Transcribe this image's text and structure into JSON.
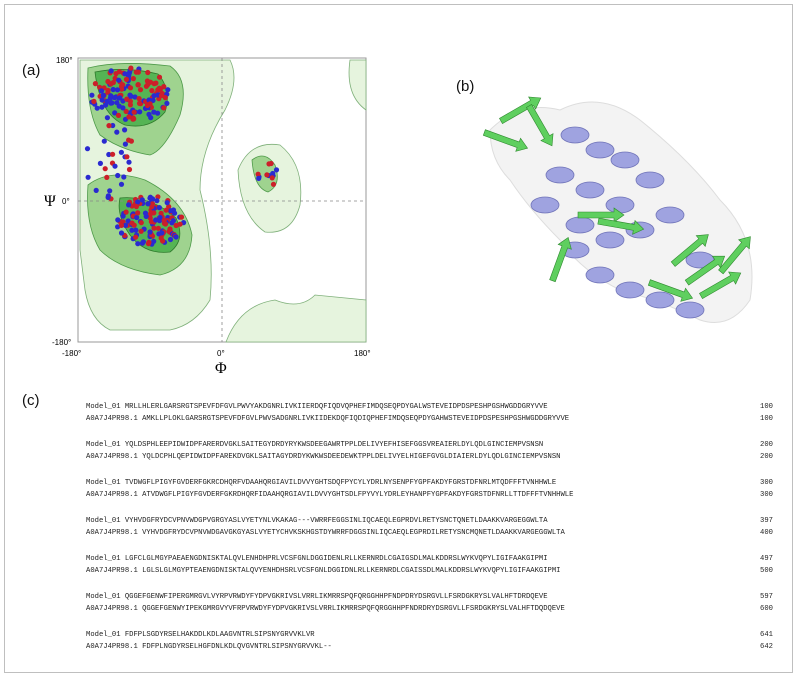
{
  "panels": {
    "a": "(a)",
    "b": "(b)",
    "c": "(c)"
  },
  "ramachandran": {
    "x_axis_label": "Φ",
    "y_axis_label": "Ψ",
    "x_ticks": [
      "-180°",
      "0°",
      "180°"
    ],
    "y_ticks": [
      "180°",
      "0°",
      "-180°"
    ]
  },
  "colors": {
    "favored": "#55b454",
    "allowed": "#9fd38f",
    "generous": "#e6f4de",
    "helix": "#9fa3e0",
    "strand": "#5fcf5f",
    "points_red": "#cc1f2a",
    "points_blue": "#2a2ad0"
  },
  "alignment": [
    {
      "line1": "Model_01 MRLLHLERLGARSRGTSPEVFDFGVLPWVYAKDGNRLIVKIIERDQFIQDVQPHEFIMDQSEQPDYGALWSTEVEIDPDSPESHPGSHWGDDGRYVVE",
      "n1": "100",
      "line2": "A0A7J4PR98.1 AMKLLPLOKLGARSRGTSPEVFDFGVLPWVSADGNRLIVKIIDEKDQFIQDIQPHEFIMDQSEQPDYGAHWSTEVEIDPDSPESHPGSHWGDDGRYVVE",
      "n2": "100"
    },
    {
      "line1": "Model_01 YQLDSPHLEEPIDWIDPFARERDVGKLSAITEGYDRDYRYKWSDEEGAWRTPPLDELIVYEFHISEFGGSVREAIERLDYLQDLGINCIEMPVSNSN",
      "n1": "200",
      "line2": "A0A7J4PR98.1 YQLDCPHLQEPIDWIDPFAREKDVGKLSAITAGYDRDYKWKWSDEEDEWKTPPLDELIVYELHIGEFGVGLDIAIERLDYLQDLGINCIEMPVSNSN",
      "n2": "200"
    },
    {
      "line1": "Model_01 TVDWGFLPIGYFGVDERFGKRCDHQRFVDAAHQRGIAVILDVVYGHTSDQFPYCYLYDRLNYSENPFYGPFAKDYFGRSTDFNRLMTQDFFFTVNHHWLE",
      "n1": "300",
      "line2": "A0A7J4PR98.1 ATVDWGFLPIGYFGVDERFGKRDHQRFIDAAHQRGIAVILDVVYGHTSDLFPYVYLYDRLEYHANPFYGPFAKDYFGRSTDFNRLLTTDFFFTVNHHWLE",
      "n2": "300"
    },
    {
      "line1": "Model_01 VYHVDGFRYDCVPNVWDGPVGRGYASLVYETYNLVKAKAG---VWRRFEGGSINLIQCAEQLEGPRDVLRETYSNCTQNETLDAAKKVARGEGGWLTA",
      "n1": "397",
      "line2": "A0A7J4PR98.1 VYHVDGFRYDCVPNVWDGAVGKGYASLVYETYCHVKSKHGSTDYWRRFDGGSINLIQCAEQLEGPRDILRETYSNCMQNETLDAAKKVARGEGGWLTA",
      "n2": "400"
    },
    {
      "line1": "Model_01 LGFCLGLMGYPAEAENGDNISKTALQVLENHDHPRLVCSFGNLDGGIDENLRLLKERNRDLCGAIGSDLMALKDDRSLWYKVQPYLIGIFAAKGIPMI",
      "n1": "497",
      "line2": "A0A7J4PR98.1 LGLSLGLMGYPTEAENGDNISKTALQVYENHDHSRLVCSFGNLDGGIDNLRLLKERNRDLCGAISSDLMALKDDRSLWYKVQPYLIGIFAAKGIPMI",
      "n2": "500"
    },
    {
      "line1": "Model_01 QGGEFGENWFIPERGMRGVLVYRPVRWDYFYDPVGKRIVSLVRRLIKMRRSPQFQRGGHHPFNDPDRYDSRGVLLFSRDGKRYSLVALHFTDRDQEVE",
      "n1": "597",
      "line2": "A0A7J4PR98.1 QGGEFGENWYIPEKGMRGVYVFRPVRWDYFYDPVGKRIVSLVRRLIKMRRSPQFQRGGHHPFNDRDRYDSRGVLLFSRDGKRYSLVALHFTDQDQEVE",
      "n2": "600"
    },
    {
      "line1": "Model_01 FDFPLSGDYRSELHAKDDLKDLAAGVNTRLSIPSNYGRVVKLVR",
      "n1": "641",
      "line2": "A0A7J4PR98.1 FDFPLNGDYRSELHGFDNLKDLQVGVNTRLSIPSNYGRVVKL--",
      "n2": "642"
    }
  ]
}
